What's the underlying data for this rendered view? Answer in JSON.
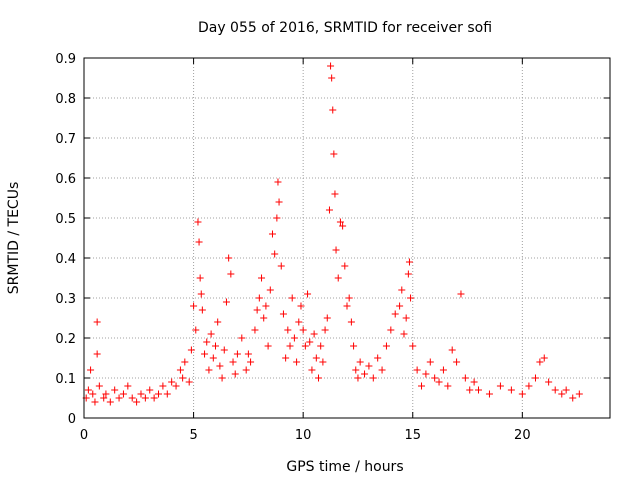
{
  "chart_data": {
    "type": "scatter",
    "title": "Day 055 of 2016, SRMTID for receiver sofi",
    "xlabel": "GPS time / hours",
    "ylabel": "SRMTID / TECUs",
    "xlim": [
      0,
      24
    ],
    "ylim": [
      0,
      0.9
    ],
    "xticks": [
      0,
      5,
      10,
      15,
      20
    ],
    "yticks": [
      0,
      0.1,
      0.2,
      0.3,
      0.4,
      0.5,
      0.6,
      0.7,
      0.8,
      0.9
    ],
    "ytick_labels": [
      "0",
      "0.1",
      "0.2",
      "0.3",
      "0.4",
      "0.5",
      "0.6",
      "0.7",
      "0.8",
      "0.9"
    ],
    "grid": true,
    "marker": "plus",
    "color": "#ff0000",
    "series": [
      {
        "name": "SRMTID",
        "points": [
          [
            0.1,
            0.05
          ],
          [
            0.2,
            0.07
          ],
          [
            0.3,
            0.12
          ],
          [
            0.4,
            0.06
          ],
          [
            0.5,
            0.04
          ],
          [
            0.6,
            0.24
          ],
          [
            0.6,
            0.16
          ],
          [
            0.7,
            0.08
          ],
          [
            0.9,
            0.05
          ],
          [
            1.0,
            0.06
          ],
          [
            1.2,
            0.04
          ],
          [
            1.4,
            0.07
          ],
          [
            1.6,
            0.05
          ],
          [
            1.8,
            0.06
          ],
          [
            2.0,
            0.08
          ],
          [
            2.2,
            0.05
          ],
          [
            2.4,
            0.04
          ],
          [
            2.6,
            0.06
          ],
          [
            2.8,
            0.05
          ],
          [
            3.0,
            0.07
          ],
          [
            3.2,
            0.05
          ],
          [
            3.4,
            0.06
          ],
          [
            3.6,
            0.08
          ],
          [
            3.8,
            0.06
          ],
          [
            4.0,
            0.09
          ],
          [
            4.2,
            0.08
          ],
          [
            4.4,
            0.12
          ],
          [
            4.5,
            0.1
          ],
          [
            4.6,
            0.14
          ],
          [
            4.8,
            0.09
          ],
          [
            4.9,
            0.17
          ],
          [
            5.0,
            0.28
          ],
          [
            5.1,
            0.22
          ],
          [
            5.2,
            0.49
          ],
          [
            5.25,
            0.44
          ],
          [
            5.3,
            0.35
          ],
          [
            5.35,
            0.31
          ],
          [
            5.4,
            0.27
          ],
          [
            5.5,
            0.16
          ],
          [
            5.6,
            0.19
          ],
          [
            5.7,
            0.12
          ],
          [
            5.8,
            0.21
          ],
          [
            5.9,
            0.15
          ],
          [
            6.0,
            0.18
          ],
          [
            6.1,
            0.24
          ],
          [
            6.2,
            0.13
          ],
          [
            6.3,
            0.1
          ],
          [
            6.4,
            0.17
          ],
          [
            6.5,
            0.29
          ],
          [
            6.6,
            0.4
          ],
          [
            6.7,
            0.36
          ],
          [
            6.8,
            0.14
          ],
          [
            6.9,
            0.11
          ],
          [
            7.0,
            0.16
          ],
          [
            7.2,
            0.2
          ],
          [
            7.4,
            0.12
          ],
          [
            7.5,
            0.16
          ],
          [
            7.6,
            0.14
          ],
          [
            7.8,
            0.22
          ],
          [
            7.9,
            0.27
          ],
          [
            8.0,
            0.3
          ],
          [
            8.1,
            0.35
          ],
          [
            8.2,
            0.25
          ],
          [
            8.3,
            0.28
          ],
          [
            8.4,
            0.18
          ],
          [
            8.5,
            0.32
          ],
          [
            8.6,
            0.46
          ],
          [
            8.7,
            0.41
          ],
          [
            8.8,
            0.5
          ],
          [
            8.85,
            0.59
          ],
          [
            8.9,
            0.54
          ],
          [
            9.0,
            0.38
          ],
          [
            9.1,
            0.26
          ],
          [
            9.2,
            0.15
          ],
          [
            9.3,
            0.22
          ],
          [
            9.4,
            0.18
          ],
          [
            9.5,
            0.3
          ],
          [
            9.6,
            0.2
          ],
          [
            9.7,
            0.14
          ],
          [
            9.8,
            0.24
          ],
          [
            9.9,
            0.28
          ],
          [
            10.0,
            0.22
          ],
          [
            10.1,
            0.18
          ],
          [
            10.2,
            0.31
          ],
          [
            10.3,
            0.19
          ],
          [
            10.4,
            0.12
          ],
          [
            10.5,
            0.21
          ],
          [
            10.6,
            0.15
          ],
          [
            10.7,
            0.1
          ],
          [
            10.8,
            0.18
          ],
          [
            10.9,
            0.14
          ],
          [
            11.0,
            0.22
          ],
          [
            11.1,
            0.25
          ],
          [
            11.2,
            0.52
          ],
          [
            11.25,
            0.88
          ],
          [
            11.3,
            0.85
          ],
          [
            11.35,
            0.77
          ],
          [
            11.4,
            0.66
          ],
          [
            11.45,
            0.56
          ],
          [
            11.5,
            0.42
          ],
          [
            11.6,
            0.35
          ],
          [
            11.7,
            0.49
          ],
          [
            11.8,
            0.48
          ],
          [
            11.9,
            0.38
          ],
          [
            12.0,
            0.28
          ],
          [
            12.1,
            0.3
          ],
          [
            12.2,
            0.24
          ],
          [
            12.3,
            0.18
          ],
          [
            12.4,
            0.12
          ],
          [
            12.5,
            0.1
          ],
          [
            12.6,
            0.14
          ],
          [
            12.8,
            0.11
          ],
          [
            13.0,
            0.13
          ],
          [
            13.2,
            0.1
          ],
          [
            13.4,
            0.15
          ],
          [
            13.6,
            0.12
          ],
          [
            13.8,
            0.18
          ],
          [
            14.0,
            0.22
          ],
          [
            14.2,
            0.26
          ],
          [
            14.4,
            0.28
          ],
          [
            14.5,
            0.32
          ],
          [
            14.6,
            0.21
          ],
          [
            14.7,
            0.25
          ],
          [
            14.8,
            0.36
          ],
          [
            14.85,
            0.39
          ],
          [
            14.9,
            0.3
          ],
          [
            15.0,
            0.18
          ],
          [
            15.2,
            0.12
          ],
          [
            15.4,
            0.08
          ],
          [
            15.6,
            0.11
          ],
          [
            15.8,
            0.14
          ],
          [
            16.0,
            0.1
          ],
          [
            16.2,
            0.09
          ],
          [
            16.4,
            0.12
          ],
          [
            16.6,
            0.08
          ],
          [
            16.8,
            0.17
          ],
          [
            17.0,
            0.14
          ],
          [
            17.2,
            0.31
          ],
          [
            17.4,
            0.1
          ],
          [
            17.6,
            0.07
          ],
          [
            17.8,
            0.09
          ],
          [
            18.0,
            0.07
          ],
          [
            18.5,
            0.06
          ],
          [
            19.0,
            0.08
          ],
          [
            19.5,
            0.07
          ],
          [
            20.0,
            0.06
          ],
          [
            20.3,
            0.08
          ],
          [
            20.6,
            0.1
          ],
          [
            20.8,
            0.14
          ],
          [
            21.0,
            0.15
          ],
          [
            21.2,
            0.09
          ],
          [
            21.5,
            0.07
          ],
          [
            21.8,
            0.06
          ],
          [
            22.0,
            0.07
          ],
          [
            22.3,
            0.05
          ],
          [
            22.6,
            0.06
          ]
        ]
      }
    ]
  }
}
